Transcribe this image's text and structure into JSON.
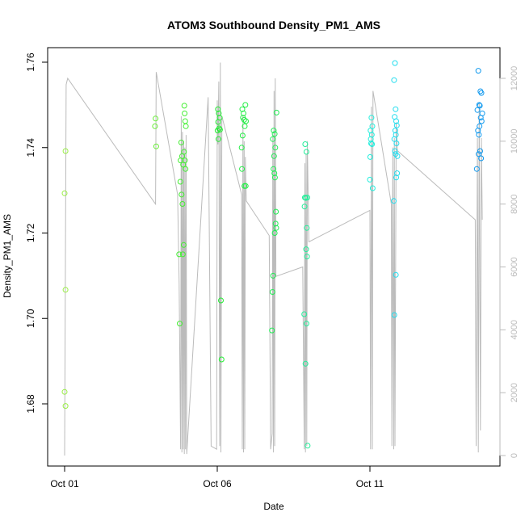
{
  "chart_data": {
    "type": "scatter",
    "title": "ATOM3 Southbound Density_PM1_AMS",
    "xlabel": "Date",
    "ylabel": "Density_PM1_AMS",
    "x_ticks": [
      "Oct 01",
      "Oct 06",
      "Oct 11"
    ],
    "x_range_days": [
      0,
      14.4
    ],
    "ylim": [
      1.67,
      1.762
    ],
    "y_ticks": [
      "1.68",
      "1.70",
      "1.72",
      "1.74",
      "1.76"
    ],
    "y_tick_values": [
      1.68,
      1.7,
      1.72,
      1.74,
      1.76
    ],
    "right_axis": {
      "ylim": [
        -200,
        12800
      ],
      "ticks": [
        "0",
        "2000",
        "4000",
        "6000",
        "8000",
        "10000",
        "12000"
      ],
      "tick_values": [
        0,
        2000,
        4000,
        6000,
        8000,
        10000,
        12000
      ],
      "color": "#bbbbbb"
    },
    "grid": false,
    "legend": "none",
    "series": [
      {
        "style": "points",
        "marker": "open-circle",
        "points": [
          {
            "x": 0.03,
            "y": 1.7392,
            "color": "#99ee44"
          },
          {
            "x": 0.0,
            "y": 1.7293,
            "color": "#99ee44"
          },
          {
            "x": 0.03,
            "y": 1.7067,
            "color": "#99ee44"
          },
          {
            "x": 0.0,
            "y": 1.6828,
            "color": "#99ee44"
          },
          {
            "x": 0.03,
            "y": 1.6795,
            "color": "#99ee44"
          },
          {
            "x": 2.98,
            "y": 1.7468,
            "color": "#66ee33"
          },
          {
            "x": 2.96,
            "y": 1.745,
            "color": "#66ee33"
          },
          {
            "x": 3.0,
            "y": 1.7403,
            "color": "#66ee33"
          },
          {
            "x": 3.82,
            "y": 1.7412,
            "color": "#44ee33"
          },
          {
            "x": 3.85,
            "y": 1.738,
            "color": "#44ee33"
          },
          {
            "x": 3.8,
            "y": 1.737,
            "color": "#44ee33"
          },
          {
            "x": 3.88,
            "y": 1.736,
            "color": "#44ee33"
          },
          {
            "x": 3.79,
            "y": 1.732,
            "color": "#44ee33"
          },
          {
            "x": 3.83,
            "y": 1.729,
            "color": "#44ee33"
          },
          {
            "x": 3.86,
            "y": 1.7268,
            "color": "#44ee33"
          },
          {
            "x": 3.75,
            "y": 1.715,
            "color": "#44ee33"
          },
          {
            "x": 3.87,
            "y": 1.715,
            "color": "#44ee33"
          },
          {
            "x": 3.9,
            "y": 1.7172,
            "color": "#44ee33"
          },
          {
            "x": 3.77,
            "y": 1.6988,
            "color": "#44ee33"
          },
          {
            "x": 3.92,
            "y": 1.7498,
            "color": "#44ee33"
          },
          {
            "x": 3.93,
            "y": 1.748,
            "color": "#44ee33"
          },
          {
            "x": 3.95,
            "y": 1.7462,
            "color": "#44ee33"
          },
          {
            "x": 3.97,
            "y": 1.745,
            "color": "#44ee33"
          },
          {
            "x": 3.91,
            "y": 1.739,
            "color": "#44ee33"
          },
          {
            "x": 3.94,
            "y": 1.737,
            "color": "#44ee33"
          },
          {
            "x": 3.96,
            "y": 1.735,
            "color": "#44ee33"
          },
          {
            "x": 5.02,
            "y": 1.749,
            "color": "#22ee33"
          },
          {
            "x": 5.05,
            "y": 1.748,
            "color": "#22ee33"
          },
          {
            "x": 5.08,
            "y": 1.747,
            "color": "#22ee33"
          },
          {
            "x": 5.03,
            "y": 1.746,
            "color": "#22ee33"
          },
          {
            "x": 5.06,
            "y": 1.7445,
            "color": "#22ee33"
          },
          {
            "x": 5.09,
            "y": 1.7442,
            "color": "#22ee33"
          },
          {
            "x": 5.01,
            "y": 1.744,
            "color": "#22ee33"
          },
          {
            "x": 5.04,
            "y": 1.742,
            "color": "#22ee33"
          },
          {
            "x": 5.12,
            "y": 1.7042,
            "color": "#22ee33"
          },
          {
            "x": 5.14,
            "y": 1.6904,
            "color": "#22ee33"
          },
          {
            "x": 5.82,
            "y": 1.749,
            "color": "#22ee44"
          },
          {
            "x": 5.86,
            "y": 1.748,
            "color": "#22ee44"
          },
          {
            "x": 5.92,
            "y": 1.75,
            "color": "#22ee44"
          },
          {
            "x": 5.84,
            "y": 1.747,
            "color": "#22ee44"
          },
          {
            "x": 5.88,
            "y": 1.7465,
            "color": "#22ee44"
          },
          {
            "x": 5.94,
            "y": 1.7462,
            "color": "#22ee44"
          },
          {
            "x": 5.9,
            "y": 1.745,
            "color": "#22ee44"
          },
          {
            "x": 5.83,
            "y": 1.7428,
            "color": "#22ee44"
          },
          {
            "x": 5.8,
            "y": 1.74,
            "color": "#22ee44"
          },
          {
            "x": 5.81,
            "y": 1.735,
            "color": "#22ee44"
          },
          {
            "x": 5.89,
            "y": 1.731,
            "color": "#22ee44"
          },
          {
            "x": 5.93,
            "y": 1.731,
            "color": "#22ee44"
          },
          {
            "x": 6.85,
            "y": 1.744,
            "color": "#22ee55"
          },
          {
            "x": 6.88,
            "y": 1.7432,
            "color": "#22ee55"
          },
          {
            "x": 6.82,
            "y": 1.742,
            "color": "#22ee55"
          },
          {
            "x": 6.9,
            "y": 1.74,
            "color": "#22ee55"
          },
          {
            "x": 6.86,
            "y": 1.738,
            "color": "#22ee55"
          },
          {
            "x": 6.84,
            "y": 1.735,
            "color": "#22ee55"
          },
          {
            "x": 6.87,
            "y": 1.734,
            "color": "#22ee55"
          },
          {
            "x": 6.89,
            "y": 1.733,
            "color": "#22ee55"
          },
          {
            "x": 6.92,
            "y": 1.725,
            "color": "#22ee55"
          },
          {
            "x": 6.91,
            "y": 1.7222,
            "color": "#22ee55"
          },
          {
            "x": 6.93,
            "y": 1.7212,
            "color": "#22ee55"
          },
          {
            "x": 6.88,
            "y": 1.72,
            "color": "#22ee55"
          },
          {
            "x": 6.83,
            "y": 1.71,
            "color": "#22ee55"
          },
          {
            "x": 6.81,
            "y": 1.7062,
            "color": "#22ee55"
          },
          {
            "x": 6.79,
            "y": 1.6972,
            "color": "#22ee55"
          },
          {
            "x": 6.94,
            "y": 1.7482,
            "color": "#22ee55"
          },
          {
            "x": 7.88,
            "y": 1.7408,
            "color": "#22ee99"
          },
          {
            "x": 7.92,
            "y": 1.739,
            "color": "#22ee99"
          },
          {
            "x": 7.87,
            "y": 1.7283,
            "color": "#22ee99"
          },
          {
            "x": 7.9,
            "y": 1.7282,
            "color": "#22ee99"
          },
          {
            "x": 7.95,
            "y": 1.7283,
            "color": "#22ee99"
          },
          {
            "x": 7.86,
            "y": 1.7262,
            "color": "#22ee99"
          },
          {
            "x": 7.93,
            "y": 1.7212,
            "color": "#22ee99"
          },
          {
            "x": 7.91,
            "y": 1.7162,
            "color": "#22ee99"
          },
          {
            "x": 7.94,
            "y": 1.7145,
            "color": "#22ee99"
          },
          {
            "x": 7.85,
            "y": 1.701,
            "color": "#22ee99"
          },
          {
            "x": 7.92,
            "y": 1.6988,
            "color": "#22ee99"
          },
          {
            "x": 7.89,
            "y": 1.6894,
            "color": "#22ee99"
          },
          {
            "x": 7.96,
            "y": 1.6702,
            "color": "#22ee99"
          },
          {
            "x": 10.05,
            "y": 1.747,
            "color": "#22eedd"
          },
          {
            "x": 10.08,
            "y": 1.745,
            "color": "#22eedd"
          },
          {
            "x": 10.02,
            "y": 1.744,
            "color": "#22eedd"
          },
          {
            "x": 10.06,
            "y": 1.743,
            "color": "#22eedd"
          },
          {
            "x": 10.03,
            "y": 1.742,
            "color": "#22eedd"
          },
          {
            "x": 10.04,
            "y": 1.741,
            "color": "#22eedd"
          },
          {
            "x": 10.07,
            "y": 1.7408,
            "color": "#22eedd"
          },
          {
            "x": 10.01,
            "y": 1.7378,
            "color": "#22eedd"
          },
          {
            "x": 10.0,
            "y": 1.7325,
            "color": "#22eedd"
          },
          {
            "x": 10.09,
            "y": 1.7305,
            "color": "#22eedd"
          },
          {
            "x": 10.82,
            "y": 1.7598,
            "color": "#22ddee"
          },
          {
            "x": 10.79,
            "y": 1.7558,
            "color": "#22ddee"
          },
          {
            "x": 10.84,
            "y": 1.749,
            "color": "#22ddee"
          },
          {
            "x": 10.81,
            "y": 1.7472,
            "color": "#22ddee"
          },
          {
            "x": 10.86,
            "y": 1.7462,
            "color": "#22ddee"
          },
          {
            "x": 10.88,
            "y": 1.7452,
            "color": "#22ddee"
          },
          {
            "x": 10.83,
            "y": 1.744,
            "color": "#22ddee"
          },
          {
            "x": 10.85,
            "y": 1.743,
            "color": "#22ddee"
          },
          {
            "x": 10.8,
            "y": 1.742,
            "color": "#22ddee"
          },
          {
            "x": 10.87,
            "y": 1.741,
            "color": "#22ddee"
          },
          {
            "x": 10.82,
            "y": 1.7392,
            "color": "#22ddee"
          },
          {
            "x": 10.84,
            "y": 1.7385,
            "color": "#22ddee"
          },
          {
            "x": 10.9,
            "y": 1.738,
            "color": "#22ddee"
          },
          {
            "x": 10.89,
            "y": 1.734,
            "color": "#22ddee"
          },
          {
            "x": 10.86,
            "y": 1.733,
            "color": "#22ddee"
          },
          {
            "x": 10.78,
            "y": 1.7275,
            "color": "#22ddee"
          },
          {
            "x": 10.85,
            "y": 1.7102,
            "color": "#22ddee"
          },
          {
            "x": 10.8,
            "y": 1.7008,
            "color": "#22ddee"
          },
          {
            "x": 13.55,
            "y": 1.758,
            "color": "#1199ee"
          },
          {
            "x": 13.62,
            "y": 1.7532,
            "color": "#1199ee"
          },
          {
            "x": 13.65,
            "y": 1.7528,
            "color": "#1199ee"
          },
          {
            "x": 13.58,
            "y": 1.75,
            "color": "#1199ee"
          },
          {
            "x": 13.6,
            "y": 1.7498,
            "color": "#1199ee"
          },
          {
            "x": 13.52,
            "y": 1.7488,
            "color": "#1199ee"
          },
          {
            "x": 13.68,
            "y": 1.748,
            "color": "#1199ee"
          },
          {
            "x": 13.63,
            "y": 1.747,
            "color": "#1199ee"
          },
          {
            "x": 13.66,
            "y": 1.7462,
            "color": "#1199ee"
          },
          {
            "x": 13.59,
            "y": 1.745,
            "color": "#1199ee"
          },
          {
            "x": 13.54,
            "y": 1.744,
            "color": "#1199ee"
          },
          {
            "x": 13.57,
            "y": 1.743,
            "color": "#1199ee"
          },
          {
            "x": 13.61,
            "y": 1.7392,
            "color": "#1199ee"
          },
          {
            "x": 13.56,
            "y": 1.7385,
            "color": "#1199ee"
          },
          {
            "x": 13.64,
            "y": 1.7375,
            "color": "#1199ee"
          },
          {
            "x": 13.5,
            "y": 1.735,
            "color": "#1199ee"
          }
        ]
      },
      {
        "style": "line",
        "axis": "right",
        "color": "#bbbbbb",
        "points": [
          [
            0.0,
            0
          ],
          [
            0.05,
            11800
          ],
          [
            0.1,
            12000
          ],
          [
            2.98,
            8000
          ],
          [
            3.0,
            12200
          ],
          [
            3.7,
            8300
          ],
          [
            3.75,
            5500
          ],
          [
            3.8,
            200
          ],
          [
            3.82,
            10800
          ],
          [
            3.84,
            100
          ],
          [
            3.86,
            10300
          ],
          [
            3.88,
            200
          ],
          [
            3.9,
            10000
          ],
          [
            3.92,
            50
          ],
          [
            3.94,
            9800
          ],
          [
            3.96,
            200
          ],
          [
            3.98,
            10200
          ],
          [
            4.0,
            50
          ],
          [
            4.7,
            11400
          ],
          [
            4.8,
            300
          ],
          [
            4.98,
            200
          ],
          [
            5.0,
            11300
          ],
          [
            5.02,
            9900
          ],
          [
            5.05,
            11900
          ],
          [
            5.08,
            300
          ],
          [
            5.1,
            12500
          ],
          [
            5.12,
            100
          ],
          [
            5.15,
            10800
          ],
          [
            5.8,
            8300
          ],
          [
            5.82,
            200
          ],
          [
            5.84,
            10800
          ],
          [
            5.86,
            100
          ],
          [
            5.88,
            10000
          ],
          [
            5.9,
            200
          ],
          [
            5.92,
            9500
          ],
          [
            5.95,
            8100
          ],
          [
            6.7,
            7000
          ],
          [
            6.75,
            200
          ],
          [
            6.8,
            700
          ],
          [
            6.82,
            10200
          ],
          [
            6.84,
            100
          ],
          [
            6.86,
            11600
          ],
          [
            6.88,
            300
          ],
          [
            6.9,
            12000
          ],
          [
            6.92,
            5700
          ],
          [
            7.8,
            6000
          ],
          [
            7.85,
            200
          ],
          [
            7.87,
            9300
          ],
          [
            7.89,
            100
          ],
          [
            7.91,
            9600
          ],
          [
            7.93,
            300
          ],
          [
            7.95,
            10000
          ],
          [
            8.0,
            6800
          ],
          [
            10.0,
            7800
          ],
          [
            10.02,
            200
          ],
          [
            10.05,
            11100
          ],
          [
            10.08,
            200
          ],
          [
            10.1,
            11600
          ],
          [
            10.7,
            8000
          ],
          [
            10.72,
            300
          ],
          [
            10.75,
            9800
          ],
          [
            10.78,
            200
          ],
          [
            10.8,
            10100
          ],
          [
            10.82,
            300
          ],
          [
            10.86,
            10600
          ],
          [
            10.9,
            9700
          ],
          [
            13.45,
            7500
          ],
          [
            13.48,
            300
          ],
          [
            13.52,
            10100
          ],
          [
            13.55,
            100
          ],
          [
            13.58,
            11200
          ],
          [
            13.62,
            800
          ],
          [
            13.65,
            10100
          ],
          [
            13.68,
            7500
          ]
        ]
      }
    ]
  }
}
